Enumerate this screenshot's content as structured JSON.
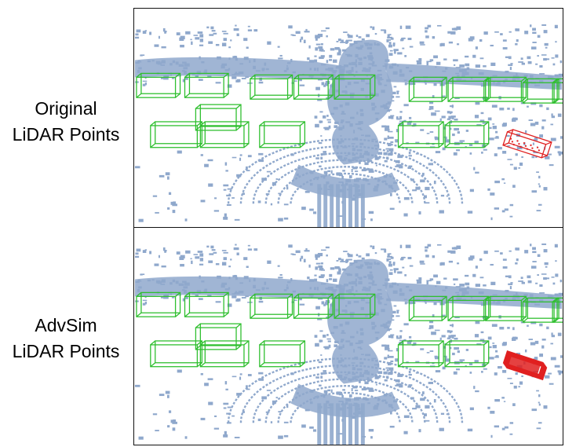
{
  "rows": [
    {
      "label_line1": "Original",
      "label_line2": "LiDAR Points",
      "target_variant": "box"
    },
    {
      "label_line1": "AdvSim",
      "label_line2": "LiDAR Points",
      "target_variant": "dense"
    }
  ],
  "colors": {
    "lidar_points": "#8fa8cc",
    "detection_box": "#2fbf2f",
    "target_vehicle": "#e02020",
    "panel_border": "#111111"
  }
}
